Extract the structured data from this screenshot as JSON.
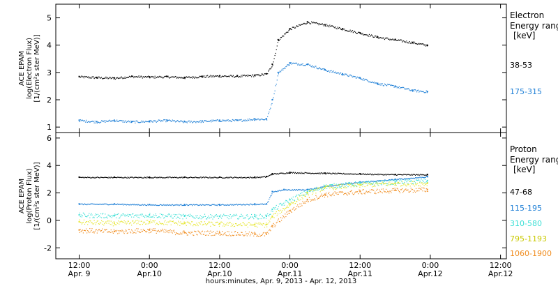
{
  "chart_data": [
    {
      "type": "scatter",
      "ylabel_lines": [
        "ACE EPAM",
        "log(Electron Flux)",
        "[1/(cm²s ster MeV)]"
      ],
      "ylim": [
        0.8,
        5.5
      ],
      "yticks": [
        1,
        2,
        3,
        4,
        5
      ],
      "legend": {
        "title_lines": [
          "Electron",
          "Energy ranges",
          "[keV]"
        ],
        "placement": "right"
      },
      "series": [
        {
          "name": "38-53",
          "color": "#000000",
          "x": [
            0,
            6,
            12,
            18,
            24,
            30,
            36,
            42,
            48,
            54,
            60,
            64,
            66,
            68,
            72,
            78,
            84,
            90,
            96,
            102,
            108,
            114,
            119
          ],
          "y": [
            2.85,
            2.82,
            2.8,
            2.86,
            2.84,
            2.85,
            2.82,
            2.86,
            2.88,
            2.87,
            2.9,
            2.95,
            3.3,
            4.2,
            4.6,
            4.85,
            4.75,
            4.6,
            4.45,
            4.3,
            4.2,
            4.1,
            4.0
          ]
        },
        {
          "name": "175-315",
          "color": "#1e7fd6",
          "x": [
            0,
            6,
            12,
            18,
            24,
            30,
            36,
            42,
            48,
            54,
            60,
            64,
            66,
            68,
            72,
            78,
            84,
            90,
            96,
            102,
            108,
            114,
            119
          ],
          "y": [
            1.25,
            1.2,
            1.25,
            1.2,
            1.22,
            1.25,
            1.2,
            1.22,
            1.25,
            1.25,
            1.3,
            1.3,
            2.0,
            3.0,
            3.35,
            3.3,
            3.1,
            2.95,
            2.8,
            2.6,
            2.5,
            2.35,
            2.3
          ]
        }
      ]
    },
    {
      "type": "scatter",
      "ylabel_lines": [
        "ACE EPAM",
        "log(Proton Flux)",
        "[1/(cm²s ster MeV)]"
      ],
      "ylim": [
        -2.8,
        6.4
      ],
      "yticks": [
        -2,
        0,
        2,
        4,
        6
      ],
      "legend": {
        "title_lines": [
          "Proton",
          "Energy ranges",
          "[keV]"
        ],
        "placement": "right"
      },
      "series": [
        {
          "name": "47-68",
          "color": "#000000",
          "x": [
            0,
            12,
            24,
            36,
            48,
            60,
            64,
            66,
            72,
            84,
            96,
            108,
            119
          ],
          "y": [
            3.15,
            3.15,
            3.15,
            3.15,
            3.15,
            3.15,
            3.2,
            3.4,
            3.5,
            3.45,
            3.4,
            3.35,
            3.35
          ]
        },
        {
          "name": "115-195",
          "color": "#1e7fd6",
          "x": [
            0,
            12,
            24,
            36,
            48,
            60,
            64,
            66,
            70,
            78,
            84,
            96,
            108,
            119
          ],
          "y": [
            1.2,
            1.2,
            1.15,
            1.15,
            1.15,
            1.2,
            1.2,
            2.1,
            2.25,
            2.25,
            2.5,
            2.8,
            3.0,
            3.2
          ]
        },
        {
          "name": "310-580",
          "color": "#3fe0d6",
          "x": [
            0,
            12,
            24,
            36,
            48,
            60,
            64,
            66,
            72,
            78,
            84,
            96,
            108,
            119
          ],
          "y": [
            0.4,
            0.35,
            0.4,
            0.3,
            0.3,
            0.3,
            0.3,
            0.8,
            1.5,
            2.1,
            2.5,
            2.7,
            2.8,
            2.9
          ]
        },
        {
          "name": "795-1193",
          "color": "#e6e62e",
          "x": [
            0,
            12,
            24,
            36,
            48,
            60,
            64,
            66,
            72,
            78,
            84,
            96,
            108,
            119
          ],
          "y": [
            -0.1,
            -0.2,
            -0.1,
            -0.2,
            -0.25,
            -0.3,
            -0.3,
            0.3,
            1.2,
            2.0,
            2.4,
            2.6,
            2.7,
            2.7
          ]
        },
        {
          "name": "1060-1900",
          "color": "#f08c1e",
          "x": [
            0,
            12,
            24,
            36,
            48,
            60,
            64,
            66,
            72,
            78,
            84,
            96,
            108,
            119
          ],
          "y": [
            -0.7,
            -0.8,
            -0.7,
            -0.9,
            -0.9,
            -1.0,
            -1.0,
            -0.4,
            0.7,
            1.5,
            1.9,
            2.1,
            2.2,
            2.25
          ]
        }
      ]
    }
  ],
  "x_axis": {
    "xlim": [
      -8,
      146
    ],
    "ticks": [
      {
        "x": 0,
        "top": "12:00",
        "bottom": "Apr. 9"
      },
      {
        "x": 24,
        "top": "0:00",
        "bottom": "Apr.10"
      },
      {
        "x": 48,
        "top": "12:00",
        "bottom": "Apr.10"
      },
      {
        "x": 72,
        "top": "0:00",
        "bottom": "Apr.11"
      },
      {
        "x": 96,
        "top": "12:00",
        "bottom": "Apr.11"
      },
      {
        "x": 120,
        "top": "0:00",
        "bottom": "Apr.12"
      },
      {
        "x": 144,
        "top": "12:00",
        "bottom": "Apr.12"
      }
    ],
    "xlabel": "hours:minutes, Apr.  9, 2013 - Apr. 12, 2013"
  }
}
